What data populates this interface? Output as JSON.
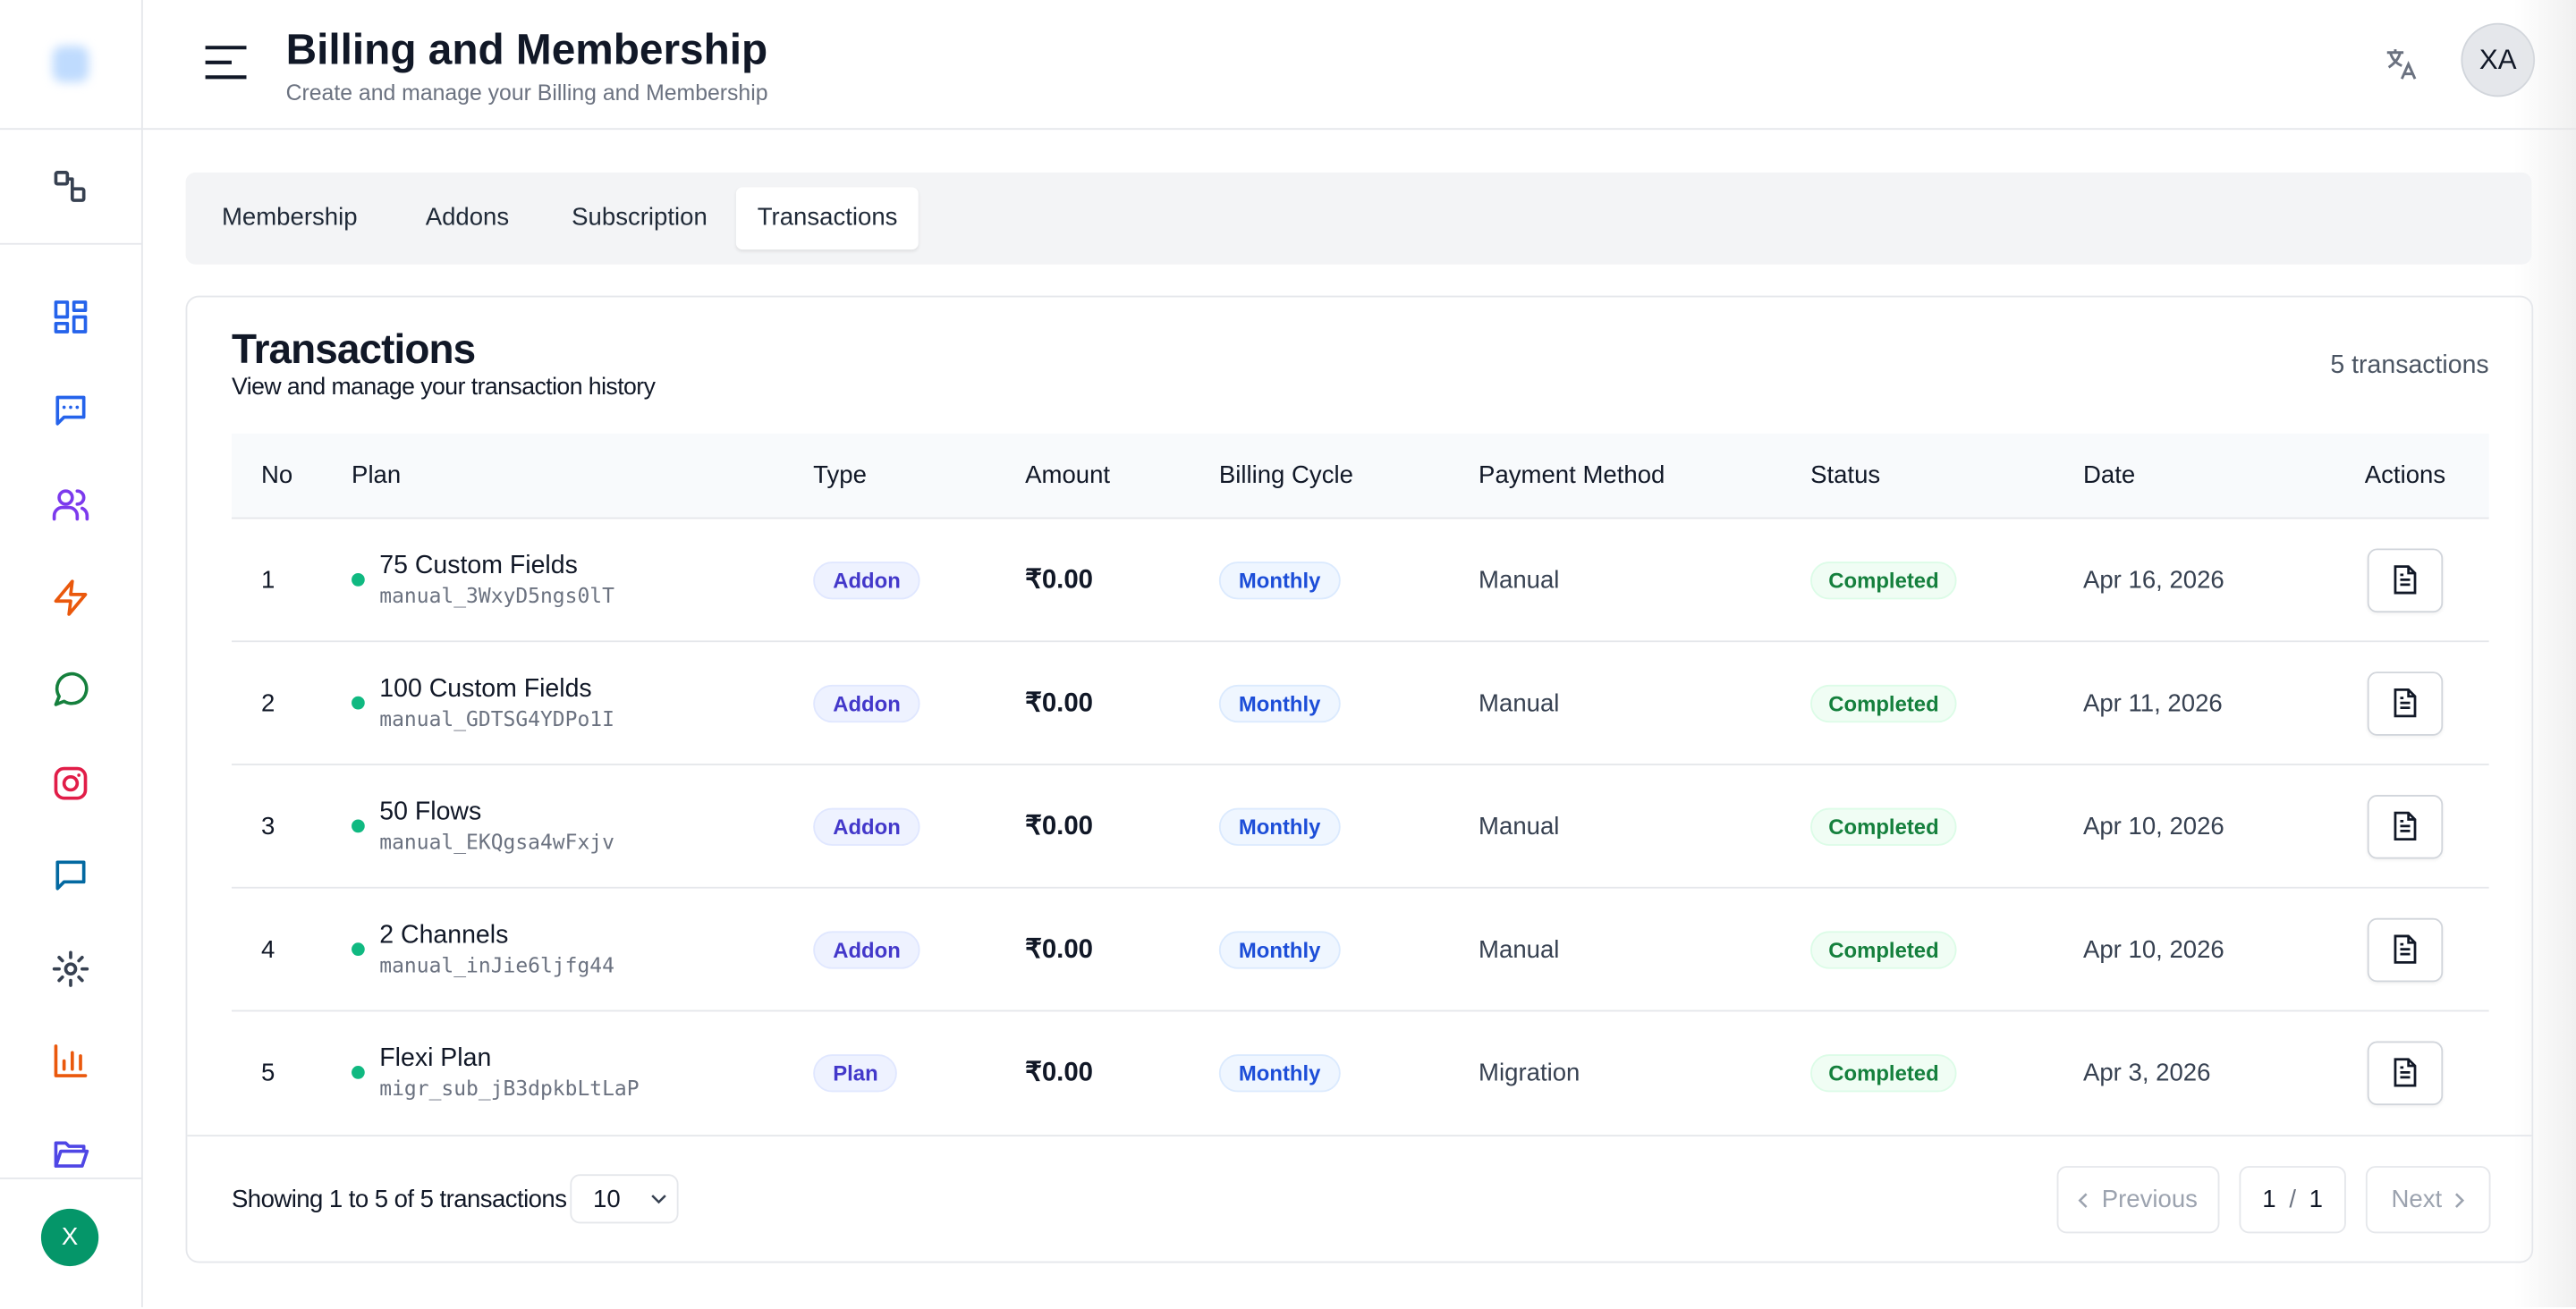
{
  "header": {
    "title": "Billing and Membership",
    "subtitle": "Create and manage your Billing and Membership",
    "avatar": "XA"
  },
  "sidebar": {
    "avatar": "X"
  },
  "tabs": [
    "Membership",
    "Addons",
    "Subscription",
    "Transactions"
  ],
  "card": {
    "title": "Transactions",
    "subtitle": "View and manage your transaction history",
    "count": "5 transactions"
  },
  "table": {
    "headers": [
      "No",
      "Plan",
      "Type",
      "Amount",
      "Billing Cycle",
      "Payment Method",
      "Status",
      "Date",
      "Actions"
    ],
    "rows": [
      [
        "1",
        "75 Custom Fields",
        "manual_3WxyD5ngs0lT",
        "Addon",
        "₹0.00",
        "Monthly",
        "Manual",
        "Completed",
        "Apr 16, 2026"
      ],
      [
        "2",
        "100 Custom Fields",
        "manual_GDTSG4YDPo1I",
        "Addon",
        "₹0.00",
        "Monthly",
        "Manual",
        "Completed",
        "Apr 11, 2026"
      ],
      [
        "3",
        "50 Flows",
        "manual_EKQgsa4wFxjv",
        "Addon",
        "₹0.00",
        "Monthly",
        "Manual",
        "Completed",
        "Apr 10, 2026"
      ],
      [
        "4",
        "2 Channels",
        "manual_inJie6ljfg44",
        "Addon",
        "₹0.00",
        "Monthly",
        "Manual",
        "Completed",
        "Apr 10, 2026"
      ],
      [
        "5",
        "Flexi Plan",
        "migr_sub_jB3dpkbLtLaP",
        "Plan",
        "₹0.00",
        "Monthly",
        "Migration",
        "Completed",
        "Apr 3, 2026"
      ]
    ]
  },
  "footer": {
    "showing": "Showing 1 to 5 of 5 transactions",
    "page_size": "10",
    "previous": "Previous",
    "page": "1",
    "separator": "/",
    "pages": "1",
    "next": "Next"
  }
}
